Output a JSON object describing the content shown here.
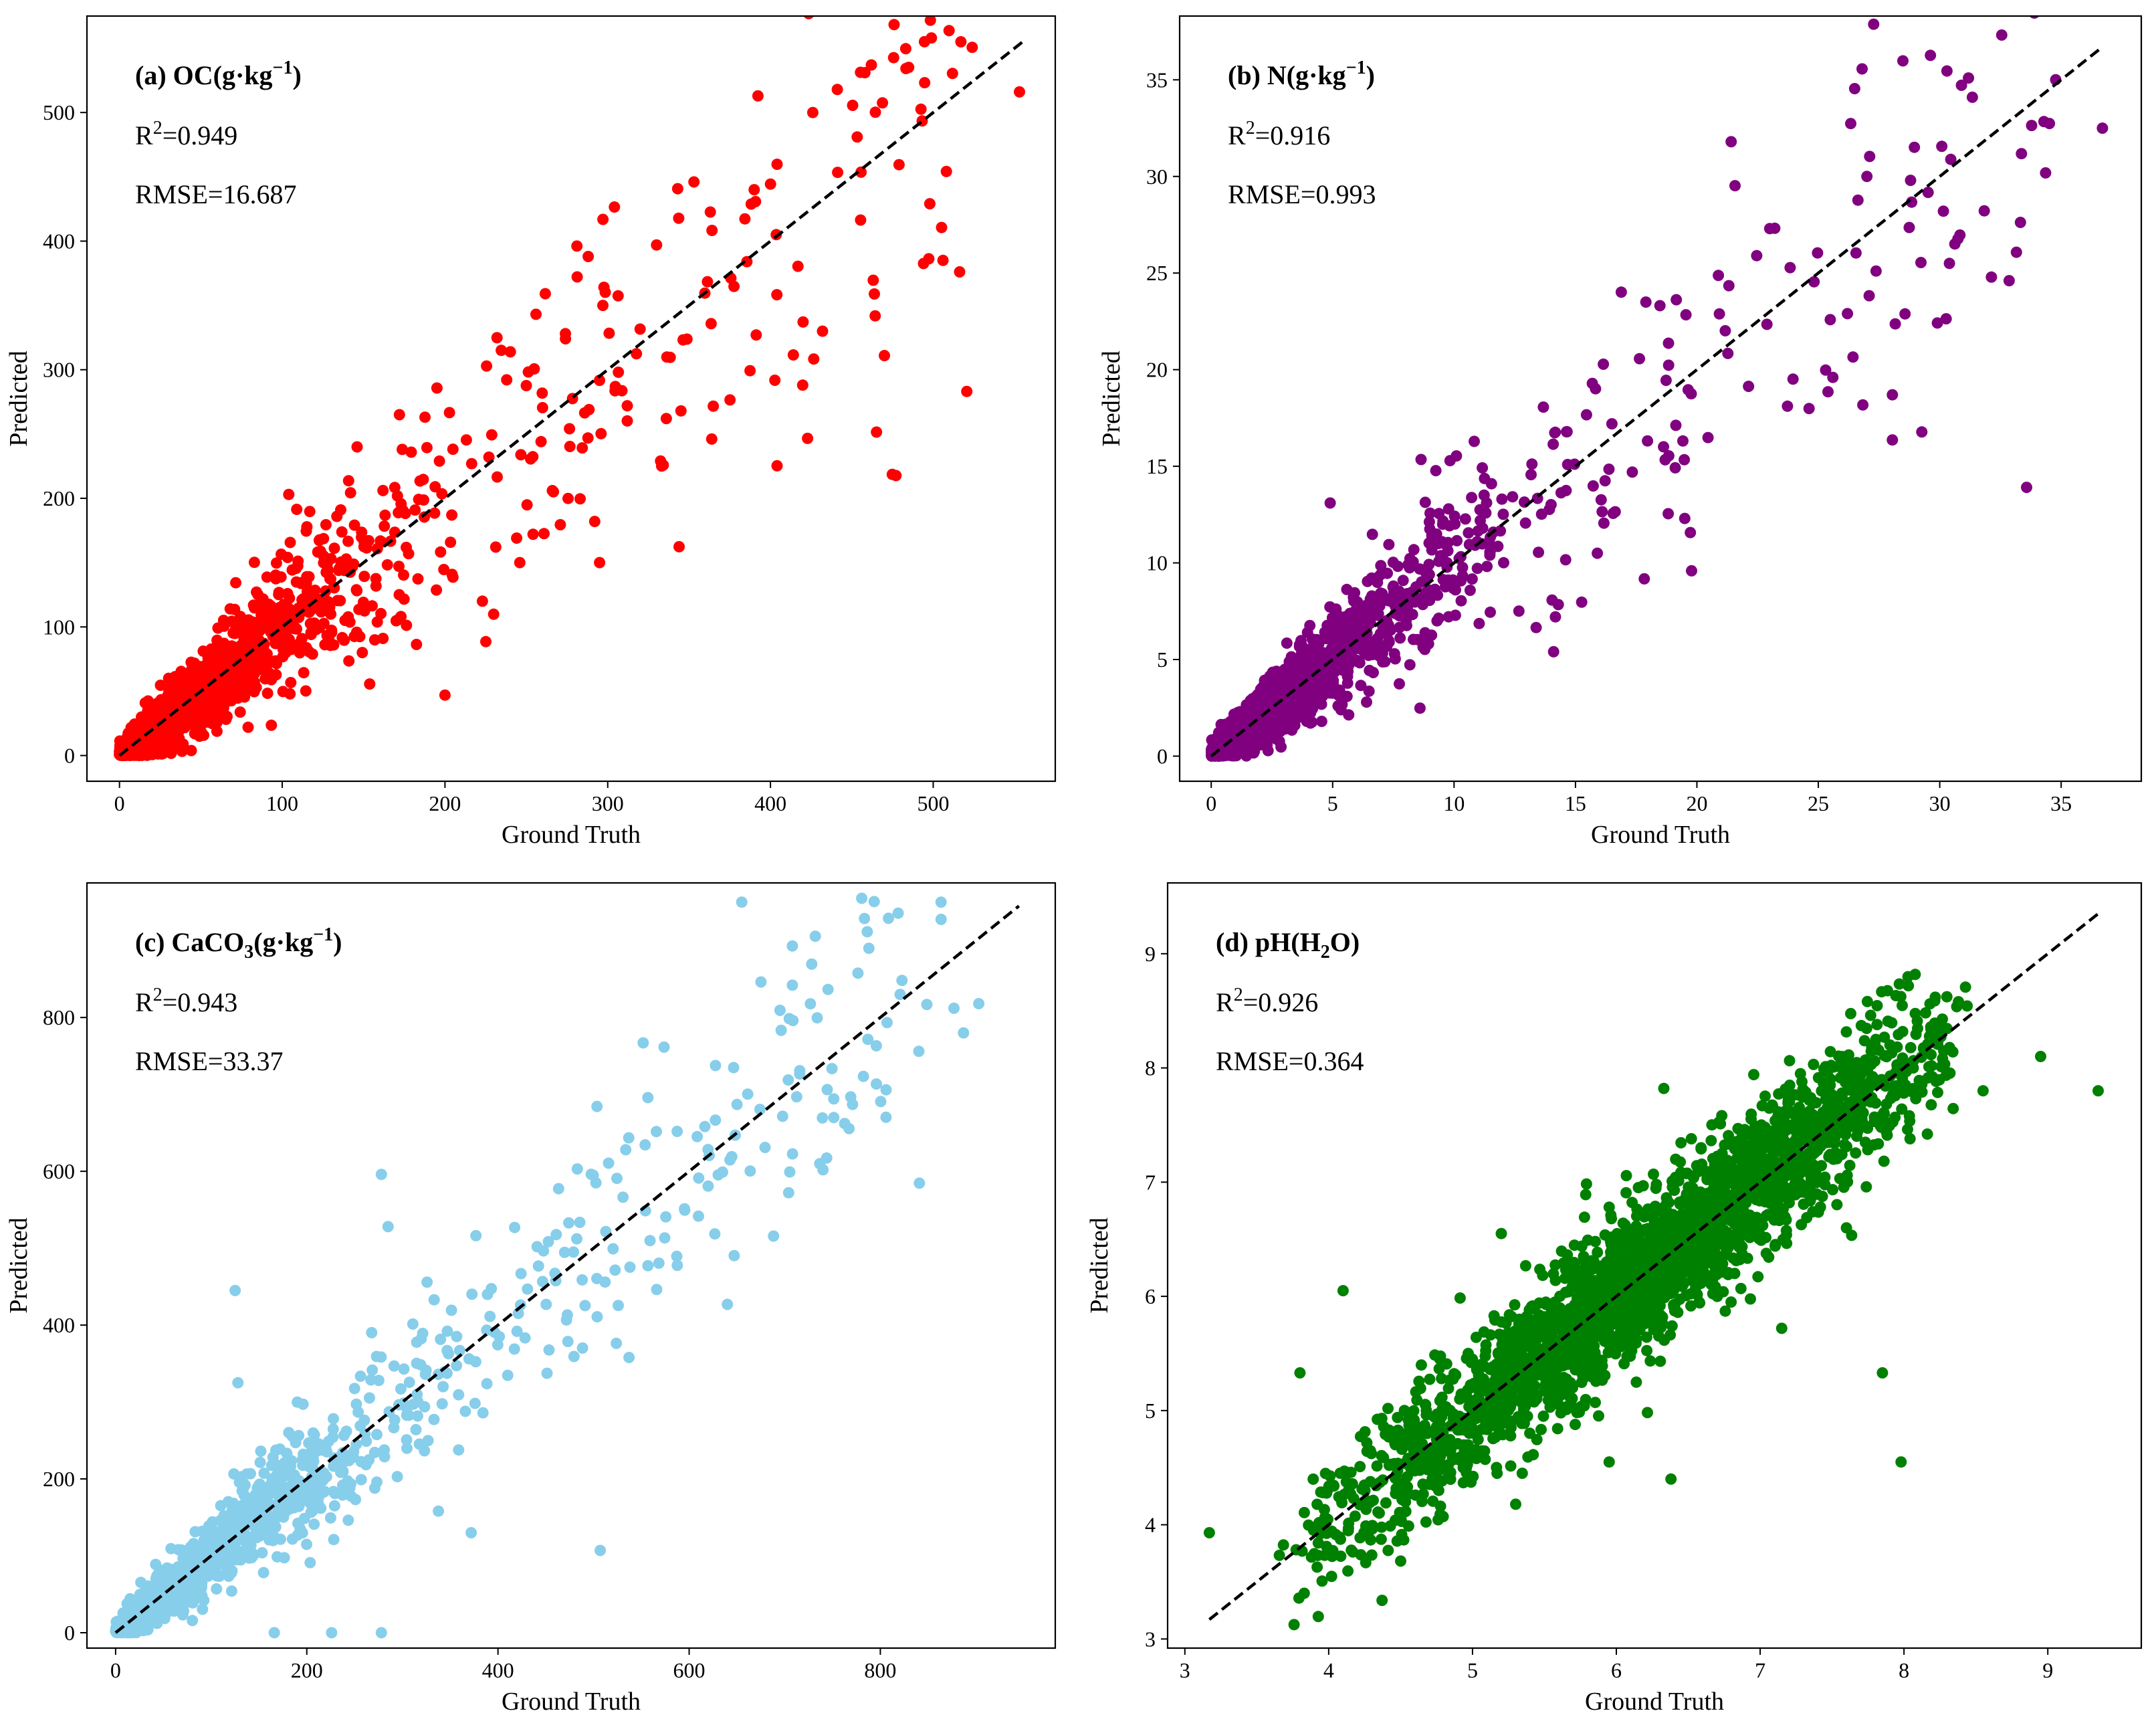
{
  "chart_data": [
    {
      "type": "scatter",
      "id": "oc",
      "title": "(a) OC(g·kg⁻¹)",
      "title_parts": {
        "prefix": "(a) OC(g·kg",
        "exponent": "−1",
        "suffix": ")"
      },
      "r2_label": "R",
      "r2_exponent": "2",
      "r2_value": "=0.949",
      "rmse_text": "RMSE=16.687",
      "xlabel": "Ground Truth",
      "ylabel": "Predicted",
      "xlim": [
        -20,
        575
      ],
      "ylim": [
        -20,
        575
      ],
      "xticks": [
        0,
        100,
        200,
        300,
        400,
        500
      ],
      "yticks": [
        0,
        100,
        200,
        300,
        400,
        500
      ],
      "line": [
        [
          0,
          0
        ],
        [
          555,
          555
        ]
      ],
      "color": "#ff0000",
      "n_points": 1800,
      "x_max": 555,
      "gen": {
        "seed": 11,
        "clusterScale": 45,
        "sigmaFrac": 0.22,
        "extra": 0.12
      },
      "points": [
        [
          517,
          555
        ],
        [
          553,
          516
        ],
        [
          462,
          537
        ],
        [
          458,
          531
        ],
        [
          470,
          311
        ],
        [
          506,
          385
        ],
        [
          292,
          182
        ],
        [
          295,
          150
        ],
        [
          432,
          330
        ],
        [
          312,
          272
        ],
        [
          200,
          47
        ],
        [
          223,
          120
        ],
        [
          330,
          397
        ],
        [
          336,
          262
        ],
        [
          345,
          268
        ],
        [
          353,
          446
        ],
        [
          297,
          350
        ],
        [
          288,
          388
        ],
        [
          274,
          328
        ],
        [
          266,
          206
        ],
        [
          104,
          203
        ],
        [
          146,
          240
        ],
        [
          172,
          265
        ],
        [
          227,
          232
        ],
        [
          426,
          500
        ],
        [
          390,
          440
        ],
        [
          246,
          150
        ]
      ]
    },
    {
      "type": "scatter",
      "id": "n",
      "title": "(b) N(g·kg⁻¹)",
      "title_parts": {
        "prefix": "(b) N(g·kg",
        "exponent": "−1",
        "suffix": ")"
      },
      "r2_label": "R",
      "r2_exponent": "2",
      "r2_value": "=0.916",
      "rmse_text": "RMSE=0.993",
      "xlabel": "Ground Truth",
      "ylabel": "Predicted",
      "xlim": [
        -1.3,
        38.3
      ],
      "ylim": [
        -1.3,
        38.3
      ],
      "xticks": [
        0,
        5,
        10,
        15,
        20,
        25,
        30,
        35
      ],
      "yticks": [
        0,
        5,
        10,
        15,
        20,
        25,
        30,
        35
      ],
      "line": [
        [
          0,
          0
        ],
        [
          36.7,
          36.7
        ]
      ],
      "color": "#800080",
      "n_points": 1700,
      "x_max": 36.7,
      "gen": {
        "seed": 23,
        "clusterScale": 3.2,
        "sigmaFrac": 0.2,
        "extra": 0.1
      },
      "points": [
        [
          36.7,
          32.5
        ],
        [
          30.4,
          25.5
        ],
        [
          27.0,
          30.0
        ],
        [
          28.8,
          29.8
        ],
        [
          25.6,
          19.6
        ],
        [
          19.5,
          12.3
        ],
        [
          14.1,
          5.4
        ],
        [
          4.9,
          13.1
        ],
        [
          26.2,
          22.9
        ],
        [
          23.0,
          27.3
        ],
        [
          17.9,
          23.5
        ],
        [
          16.5,
          17.2
        ],
        [
          9.3,
          7.0
        ],
        [
          15.9,
          10.5
        ]
      ]
    },
    {
      "type": "scatter",
      "id": "caco3",
      "title": "(c) CaCO₃(g·kg⁻¹)",
      "title_parts": {
        "prefix": "(c) CaCO",
        "subscript": "3",
        "prefix2": "(g·kg",
        "exponent": "−1",
        "suffix": ")"
      },
      "r2_label": "R",
      "r2_exponent": "2",
      "r2_value": "=0.943",
      "rmse_text": "RMSE=33.37",
      "xlabel": "Ground Truth",
      "ylabel": "Predicted",
      "xlim": [
        -30,
        983
      ],
      "ylim": [
        -20,
        975
      ],
      "xticks": [
        0,
        200,
        400,
        600,
        800
      ],
      "yticks": [
        0,
        200,
        400,
        600,
        800
      ],
      "line": [
        [
          0,
          0
        ],
        [
          945,
          945
        ]
      ],
      "color": "#87ceeb",
      "n_points": 1300,
      "x_max": 910,
      "gen": {
        "seed": 37,
        "clusterScale": 110,
        "sigmaFrac": 0.16,
        "extra": 0.15
      },
      "points": [
        [
          655,
          950
        ],
        [
          708,
          893
        ],
        [
          788,
          890
        ],
        [
          708,
          842
        ],
        [
          903,
          818
        ],
        [
          877,
          812
        ],
        [
          887,
          780
        ],
        [
          507,
          107
        ],
        [
          372,
          130
        ],
        [
          226,
          0
        ],
        [
          278,
          0
        ],
        [
          166,
          0
        ],
        [
          125,
          445
        ],
        [
          278,
          596
        ],
        [
          285,
          528
        ],
        [
          128,
          325
        ],
        [
          740,
          602
        ],
        [
          806,
          706
        ],
        [
          640,
          427
        ]
      ]
    },
    {
      "type": "scatter",
      "id": "ph",
      "title": "(d) pH(H₂O)",
      "title_parts": {
        "prefix": "(d) pH(H",
        "subscript": "2",
        "prefix2": "O",
        "suffix": ")"
      },
      "r2_label": "R",
      "r2_exponent": "2",
      "r2_value": "=0.926",
      "rmse_text": "RMSE=0.364",
      "xlabel": "Ground Truth",
      "ylabel": "Predicted",
      "xlim": [
        2.88,
        9.65
      ],
      "ylim": [
        2.92,
        9.62
      ],
      "xticks": [
        3,
        4,
        5,
        6,
        7,
        8,
        9
      ],
      "yticks": [
        3,
        4,
        5,
        6,
        7,
        8,
        9
      ],
      "line": [
        [
          3.17,
          3.17
        ],
        [
          9.35,
          9.35
        ]
      ],
      "color": "#008000",
      "n_points": 2600,
      "x_max": 9.35,
      "gen": {
        "seed": 53,
        "mode": "uniform",
        "xmin": 3.6,
        "xmax": 8.45,
        "sigma": 0.3
      },
      "points": [
        [
          3.17,
          3.93
        ],
        [
          3.83,
          3.4
        ],
        [
          9.35,
          7.8
        ],
        [
          8.95,
          8.1
        ],
        [
          7.98,
          4.55
        ],
        [
          7.85,
          5.33
        ],
        [
          6.38,
          4.4
        ],
        [
          5.95,
          4.55
        ],
        [
          5.3,
          4.18
        ],
        [
          5.2,
          6.55
        ],
        [
          4.1,
          6.05
        ],
        [
          3.8,
          5.33
        ],
        [
          6.33,
          7.82
        ],
        [
          7.15,
          5.72
        ],
        [
          7.6,
          6.6
        ],
        [
          8.55,
          7.8
        ]
      ]
    }
  ]
}
